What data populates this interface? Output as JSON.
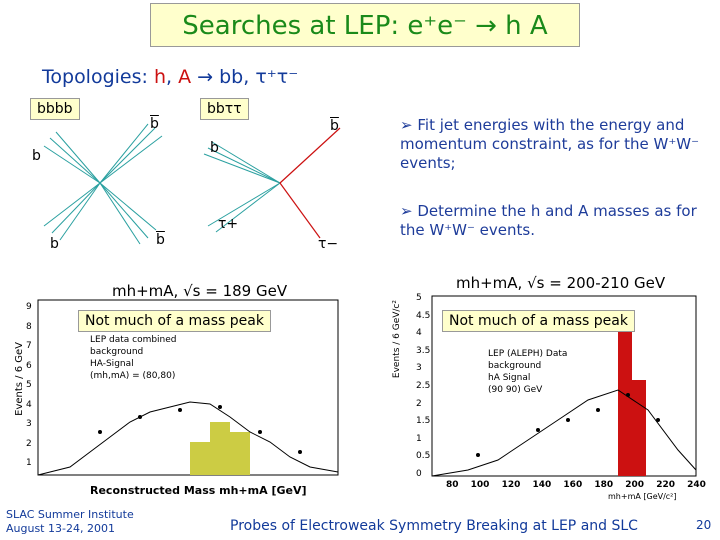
{
  "title": "Searches at LEP: e⁺e⁻ → h A",
  "topologies": {
    "prefix": "Topologies:",
    "h": "h",
    "sep": ",",
    "a": "A",
    "rest": "→ bb, τ⁺τ⁻"
  },
  "diagram_left": {
    "label": "bbbb",
    "jets": [
      "b",
      "b",
      "b",
      "b"
    ]
  },
  "diagram_right": {
    "label": "bbττ",
    "jets": [
      "b",
      "b",
      "τ+",
      "τ−"
    ]
  },
  "bullets": [
    "Fit jet energies with the energy and momentum constraint, as for the W⁺W⁻ events;",
    "Determine the h and A masses as for the W⁺W⁻ events."
  ],
  "plot_left": {
    "heading": "mh+mA, √s = 189 GeV",
    "note": "Not much of a mass peak",
    "ylabel": "Events / 6 GeV",
    "xlabel": "Reconstructed Mass mh+mA [GeV]",
    "legend": [
      "LEP data combined",
      "background",
      "HA-Signal",
      "(mh,mA) = (80,80)"
    ],
    "yticks": [
      "9",
      "8",
      "7",
      "6",
      "5",
      "4",
      "3",
      "2",
      "1"
    ]
  },
  "plot_right": {
    "heading": "mh+mA, √s = 200-210 GeV",
    "note": "Not much of a mass peak",
    "ylabel": "Events / 6 GeV/c²",
    "xlabel": "mh+mA [GeV/c²]",
    "legend": [
      "LEP (ALEPH) Data",
      "background",
      "hA Signal",
      "(90 90) GeV"
    ],
    "yticks": [
      "5",
      "4.5",
      "4",
      "3.5",
      "3",
      "2.5",
      "2",
      "1.5",
      "1",
      "0.5",
      "0"
    ],
    "xticks": [
      "80",
      "100",
      "120",
      "140",
      "160",
      "180",
      "200",
      "220",
      "240"
    ]
  },
  "footer": {
    "left_line1": "SLAC Summer Institute",
    "left_line2": "August 13-24, 2001",
    "center": "Probes of Electroweak Symmetry Breaking at LEP and SLC",
    "page": "20"
  },
  "colors": {
    "title": "#1a8a1a",
    "topology": "#123a9a",
    "accent_red": "#cc1111",
    "box": "#ffffcc",
    "jets": "#2aa0a0"
  }
}
